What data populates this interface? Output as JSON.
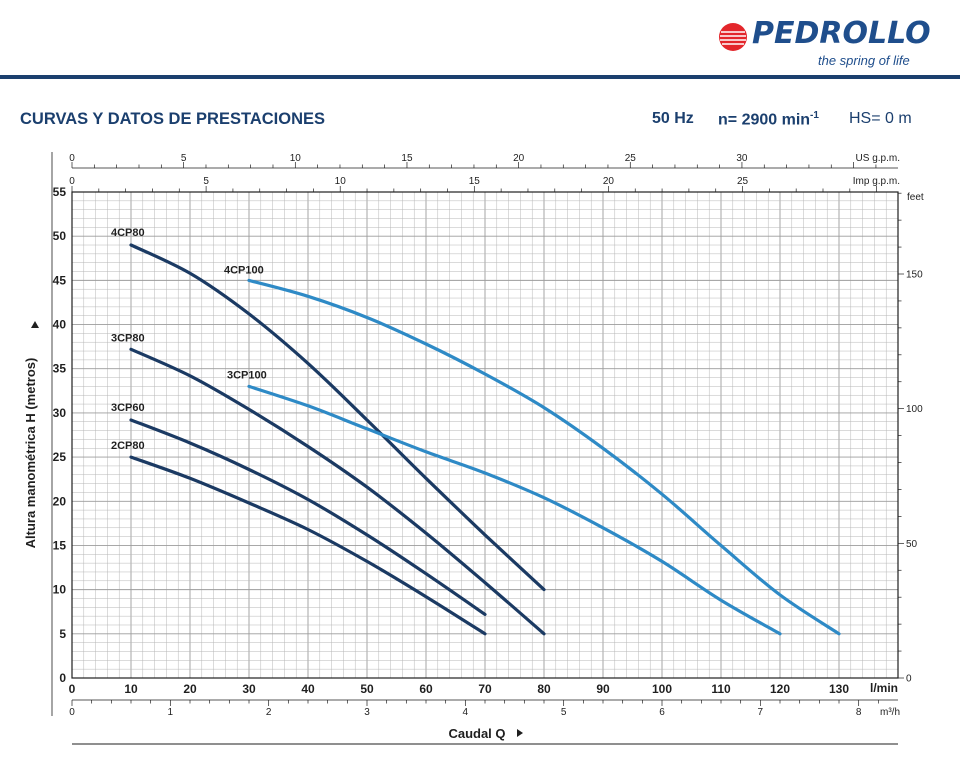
{
  "brand": {
    "name": "PEDROLLO",
    "tagline": "the spring of life",
    "red": "#e3262b",
    "blue": "#1f4e8c"
  },
  "header": {
    "title": "CURVAS Y DATOS DE PRESTACIONES",
    "frequency": "50 Hz",
    "speed": "n= 2900 min",
    "speed_exp": "-1",
    "suction": "HS= 0 m"
  },
  "colors": {
    "rule": "#1b3f6e",
    "dark_curve": "#1b3a63",
    "light_curve": "#2e8ac6",
    "grid": "#b7b7b7",
    "text": "#1f1f1f"
  },
  "chart_data": {
    "type": "line",
    "ylabel": "Altura manométrica H (metros)",
    "xlabel": "Caudal Q",
    "x_unit": "l/min",
    "x_range": [
      0,
      140
    ],
    "y_range": [
      0,
      55
    ],
    "x_ticks": [
      0,
      10,
      20,
      30,
      40,
      50,
      60,
      70,
      80,
      90,
      100,
      110,
      120,
      130
    ],
    "y_ticks": [
      0,
      5,
      10,
      15,
      20,
      25,
      30,
      35,
      40,
      45,
      50,
      55
    ],
    "grid": true,
    "secondary_axes": {
      "us_gpm": {
        "label": "US g.p.m.",
        "ticks": [
          0,
          5,
          10,
          15,
          20,
          25,
          30
        ],
        "factor_lpm": 3.785
      },
      "imp_gpm": {
        "label": "Imp g.p.m.",
        "ticks": [
          0,
          5,
          10,
          15,
          20,
          25
        ],
        "factor_lpm": 4.546
      },
      "m3h": {
        "label": "m³/h",
        "ticks": [
          0,
          1,
          2,
          3,
          4,
          5,
          6,
          7,
          8
        ],
        "factor_lpm": 16.6667
      },
      "feet": {
        "label": "feet",
        "ticks": [
          0,
          50,
          100,
          150
        ],
        "factor_m": 0.3048
      }
    },
    "series": [
      {
        "name": "4CP80",
        "style": "dark",
        "x": [
          10,
          20,
          30,
          40,
          50,
          60,
          70,
          80
        ],
        "y": [
          49,
          45.8,
          41.2,
          35.6,
          29.2,
          22.6,
          16.2,
          10
        ]
      },
      {
        "name": "3CP80",
        "style": "dark",
        "x": [
          10,
          20,
          30,
          40,
          50,
          60,
          70,
          80
        ],
        "y": [
          37.2,
          34.2,
          30.4,
          26.2,
          21.6,
          16.4,
          10.8,
          5
        ]
      },
      {
        "name": "3CP60",
        "style": "dark",
        "x": [
          10,
          20,
          30,
          40,
          50,
          60,
          70
        ],
        "y": [
          29.2,
          26.6,
          23.6,
          20.2,
          16.2,
          11.8,
          7.2
        ]
      },
      {
        "name": "2CP80",
        "style": "dark",
        "x": [
          10,
          20,
          30,
          40,
          50,
          60,
          70
        ],
        "y": [
          25,
          22.6,
          19.8,
          16.8,
          13.2,
          9.2,
          5
        ]
      },
      {
        "name": "4CP100",
        "style": "light",
        "x": [
          30,
          40,
          50,
          60,
          70,
          80,
          90,
          100,
          110,
          120,
          130
        ],
        "y": [
          45,
          43.2,
          40.8,
          37.8,
          34.4,
          30.6,
          26,
          20.8,
          15,
          9.4,
          5
        ]
      },
      {
        "name": "3CP100",
        "style": "light",
        "x": [
          30,
          40,
          50,
          60,
          70,
          80,
          90,
          100,
          110,
          120
        ],
        "y": [
          33,
          30.8,
          28.2,
          25.6,
          23.2,
          20.4,
          17,
          13.2,
          8.8,
          5
        ]
      }
    ]
  }
}
